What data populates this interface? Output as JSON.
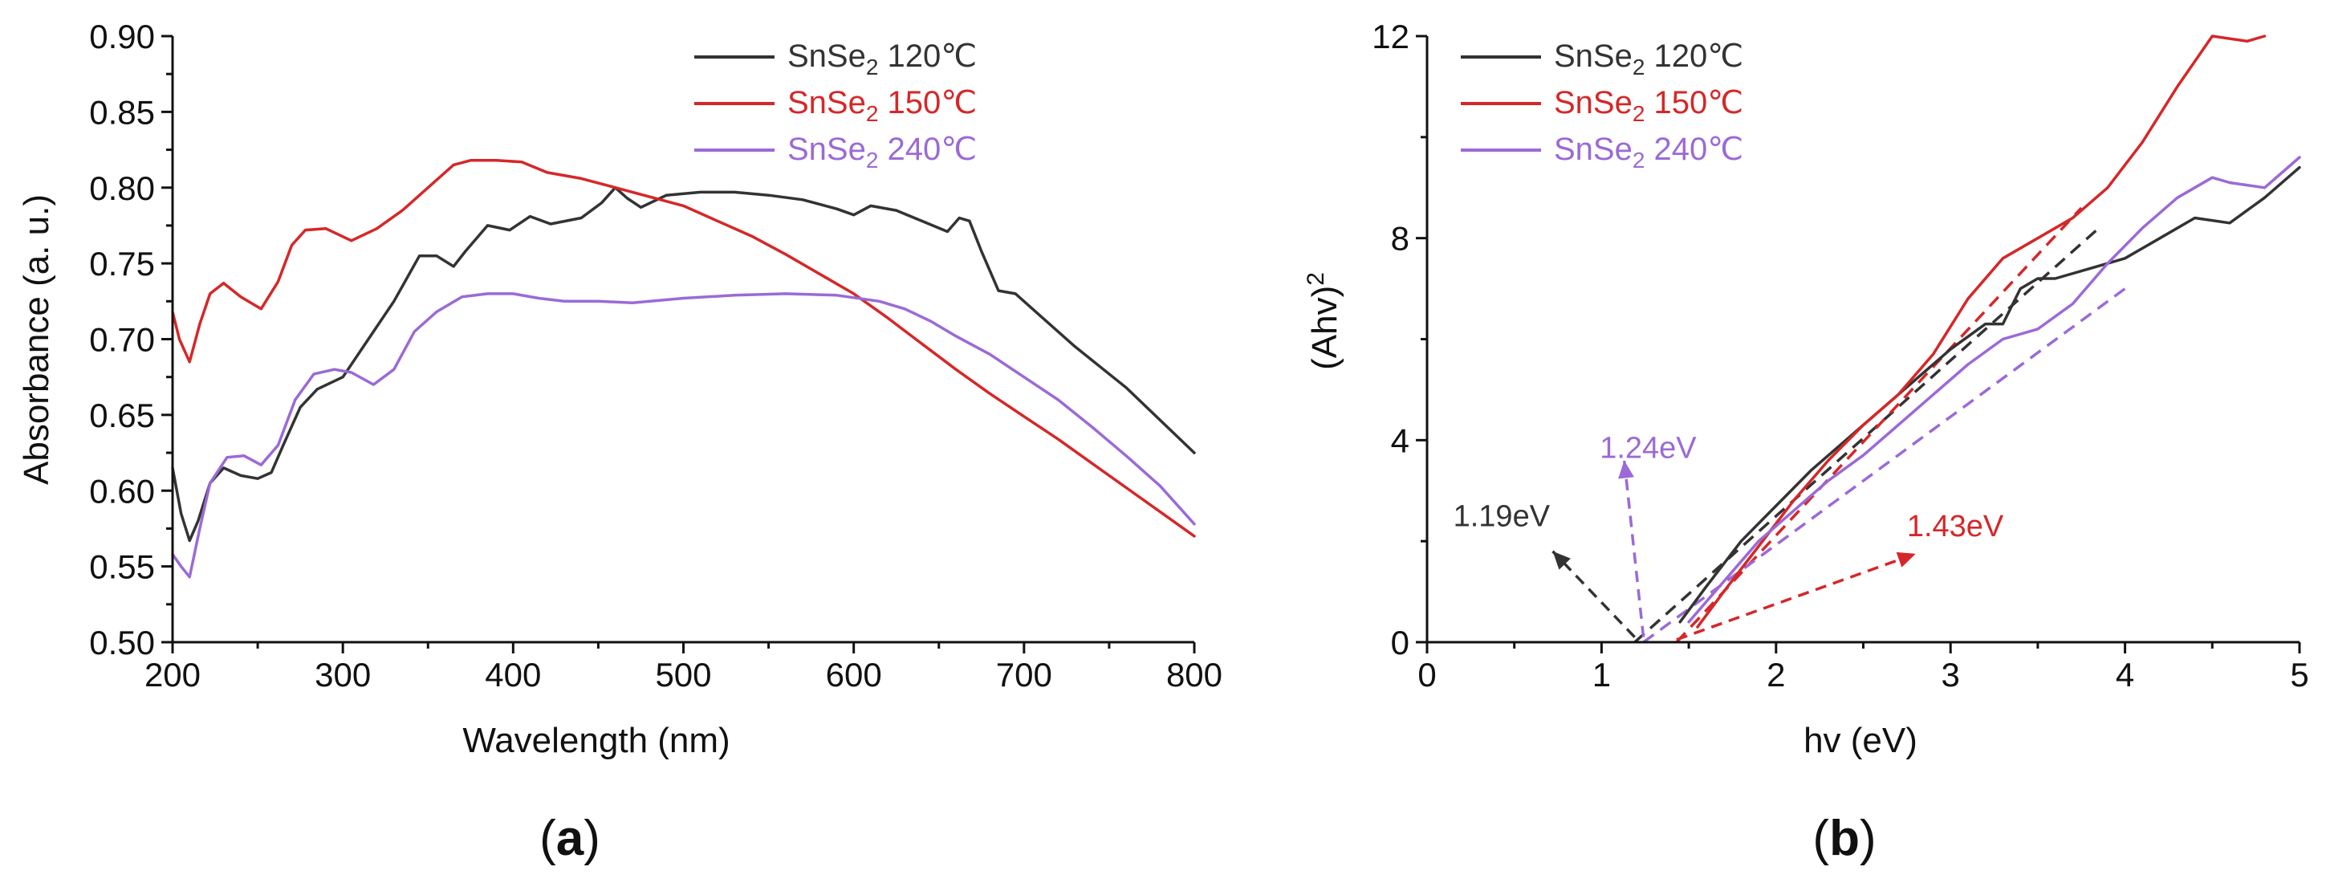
{
  "figure": {
    "panel_a_caption": {
      "open": "(",
      "letter": "a",
      "close": ")"
    },
    "panel_b_caption": {
      "open": "(",
      "letter": "b",
      "close": ")"
    }
  },
  "chart_data": [
    {
      "type": "line",
      "panel": "a",
      "title": "",
      "xlabel": "Wavelength (nm)",
      "ylabel": "Absorbance (a. u.)",
      "xlim": [
        200,
        800
      ],
      "ylim": [
        0.5,
        0.9
      ],
      "xticks": [
        200,
        300,
        400,
        500,
        600,
        700,
        800
      ],
      "xtick_labels": [
        "200",
        "300",
        "400",
        "500",
        "600",
        "700",
        "800"
      ],
      "yticks": [
        0.5,
        0.55,
        0.6,
        0.65,
        0.7,
        0.75,
        0.8,
        0.85,
        0.9
      ],
      "ytick_labels": [
        "0.50",
        "0.55",
        "0.60",
        "0.65",
        "0.70",
        "0.75",
        "0.80",
        "0.85",
        "0.90"
      ],
      "grid": false,
      "legend_position": "top-right",
      "series": [
        {
          "name": "SnSe₂ 120℃",
          "legend": {
            "base": "SnSe",
            "sub": "2",
            "temp": " 120℃"
          },
          "color": "#333333",
          "x": [
            200,
            205,
            210,
            215,
            222,
            230,
            240,
            250,
            258,
            265,
            275,
            285,
            300,
            315,
            330,
            345,
            355,
            365,
            372,
            385,
            398,
            410,
            422,
            440,
            452,
            460,
            467,
            475,
            490,
            510,
            530,
            550,
            570,
            590,
            600,
            610,
            625,
            640,
            655,
            662,
            668,
            675,
            685,
            695,
            705,
            730,
            760,
            800
          ],
          "y": [
            0.615,
            0.585,
            0.567,
            0.58,
            0.605,
            0.615,
            0.61,
            0.608,
            0.612,
            0.63,
            0.655,
            0.667,
            0.675,
            0.7,
            0.725,
            0.755,
            0.755,
            0.748,
            0.758,
            0.775,
            0.772,
            0.781,
            0.776,
            0.78,
            0.79,
            0.8,
            0.793,
            0.787,
            0.795,
            0.797,
            0.797,
            0.795,
            0.792,
            0.786,
            0.782,
            0.788,
            0.785,
            0.778,
            0.771,
            0.78,
            0.778,
            0.758,
            0.732,
            0.73,
            0.72,
            0.695,
            0.668,
            0.625
          ]
        },
        {
          "name": "SnSe₂ 150℃",
          "legend": {
            "base": "SnSe",
            "sub": "2",
            "temp": " 150℃"
          },
          "color": "#d62728",
          "x": [
            200,
            204,
            210,
            216,
            222,
            230,
            240,
            252,
            262,
            270,
            278,
            290,
            305,
            320,
            335,
            350,
            365,
            375,
            390,
            405,
            420,
            440,
            460,
            480,
            500,
            520,
            540,
            560,
            580,
            600,
            620,
            640,
            660,
            680,
            700,
            720,
            740,
            760,
            780,
            800
          ],
          "y": [
            0.718,
            0.7,
            0.685,
            0.71,
            0.73,
            0.737,
            0.728,
            0.72,
            0.738,
            0.762,
            0.772,
            0.773,
            0.765,
            0.773,
            0.785,
            0.8,
            0.815,
            0.818,
            0.818,
            0.817,
            0.81,
            0.806,
            0.8,
            0.794,
            0.788,
            0.778,
            0.768,
            0.756,
            0.743,
            0.73,
            0.714,
            0.697,
            0.68,
            0.664,
            0.649,
            0.634,
            0.618,
            0.602,
            0.586,
            0.57
          ]
        },
        {
          "name": "SnSe₂ 240℃",
          "legend": {
            "base": "SnSe",
            "sub": "2",
            "temp": " 240℃"
          },
          "color": "#9b6ad6",
          "x": [
            200,
            205,
            210,
            216,
            222,
            232,
            242,
            252,
            262,
            272,
            283,
            295,
            305,
            318,
            330,
            342,
            355,
            370,
            385,
            400,
            415,
            430,
            450,
            470,
            500,
            530,
            560,
            590,
            615,
            630,
            645,
            660,
            680,
            700,
            720,
            740,
            760,
            780,
            800
          ],
          "y": [
            0.558,
            0.55,
            0.543,
            0.575,
            0.605,
            0.622,
            0.623,
            0.617,
            0.63,
            0.66,
            0.677,
            0.68,
            0.678,
            0.67,
            0.68,
            0.705,
            0.718,
            0.728,
            0.73,
            0.73,
            0.727,
            0.725,
            0.725,
            0.724,
            0.727,
            0.729,
            0.73,
            0.729,
            0.725,
            0.72,
            0.712,
            0.702,
            0.69,
            0.675,
            0.66,
            0.642,
            0.623,
            0.603,
            0.578
          ]
        }
      ]
    },
    {
      "type": "line",
      "panel": "b",
      "title": "",
      "xlabel": "hv (eV)",
      "ylabel": {
        "base": "(Ahv)",
        "sup": "2"
      },
      "xlim": [
        0,
        5
      ],
      "ylim": [
        0,
        12
      ],
      "xticks": [
        0,
        1,
        2,
        3,
        4,
        5
      ],
      "xtick_labels": [
        "0",
        "1",
        "2",
        "3",
        "4",
        "5"
      ],
      "yticks": [
        0,
        4,
        8,
        12
      ],
      "ytick_labels": [
        "0",
        "4",
        "8",
        "12"
      ],
      "grid": false,
      "legend_position": "top-left",
      "series": [
        {
          "name": "SnSe₂ 120℃",
          "legend": {
            "base": "SnSe",
            "sub": "2",
            "temp": " 120℃"
          },
          "color": "#333333",
          "x": [
            1.45,
            1.6,
            1.8,
            2.0,
            2.2,
            2.4,
            2.6,
            2.8,
            3.0,
            3.2,
            3.3,
            3.4,
            3.5,
            3.6,
            3.8,
            4.0,
            4.2,
            4.4,
            4.6,
            4.8,
            5.0
          ],
          "y": [
            0.4,
            1.1,
            2.0,
            2.7,
            3.4,
            4.0,
            4.6,
            5.2,
            5.8,
            6.3,
            6.3,
            7.0,
            7.2,
            7.2,
            7.4,
            7.6,
            8.0,
            8.4,
            8.3,
            8.8,
            9.4
          ]
        },
        {
          "name": "SnSe₂ 150℃",
          "legend": {
            "base": "SnSe",
            "sub": "2",
            "temp": " 150℃"
          },
          "color": "#d62728",
          "x": [
            1.55,
            1.7,
            1.9,
            2.1,
            2.3,
            2.5,
            2.7,
            2.9,
            3.1,
            3.3,
            3.5,
            3.7,
            3.9,
            4.1,
            4.3,
            4.5,
            4.7,
            4.8
          ],
          "y": [
            0.3,
            1.0,
            1.9,
            2.8,
            3.6,
            4.3,
            4.9,
            5.7,
            6.8,
            7.6,
            8.0,
            8.4,
            9.0,
            9.9,
            11.0,
            12.0,
            11.9,
            12.0
          ]
        },
        {
          "name": "SnSe₂ 240℃",
          "legend": {
            "base": "SnSe",
            "sub": "2",
            "temp": " 240℃"
          },
          "color": "#9b6ad6",
          "x": [
            1.5,
            1.7,
            1.9,
            2.1,
            2.3,
            2.5,
            2.7,
            2.9,
            3.1,
            3.3,
            3.5,
            3.7,
            3.9,
            4.1,
            4.3,
            4.5,
            4.6,
            4.8,
            5.0
          ],
          "y": [
            0.4,
            1.2,
            2.0,
            2.6,
            3.2,
            3.7,
            4.3,
            4.9,
            5.5,
            6.0,
            6.2,
            6.7,
            7.5,
            8.2,
            8.8,
            9.2,
            9.1,
            9.0,
            9.6
          ]
        }
      ],
      "fit_lines": [
        {
          "name": "120℃ linear fit",
          "color": "#333333",
          "x": [
            1.19,
            3.85
          ],
          "y": [
            0,
            8.2
          ]
        },
        {
          "name": "150℃ linear fit",
          "color": "#d62728",
          "x": [
            1.43,
            3.75
          ],
          "y": [
            0,
            8.6
          ]
        },
        {
          "name": "240℃ linear fit",
          "color": "#9b6ad6",
          "x": [
            1.24,
            4.0
          ],
          "y": [
            0,
            7.0
          ]
        }
      ],
      "annotations": [
        {
          "text": "1.19eV",
          "color": "#333333",
          "arrow_from": [
            1.19,
            0.1
          ],
          "arrow_to": [
            0.72,
            1.8
          ],
          "label_at": [
            0.15,
            2.3
          ]
        },
        {
          "text": "1.24eV",
          "color": "#9b6ad6",
          "arrow_from": [
            1.24,
            0.1
          ],
          "arrow_to": [
            1.13,
            3.6
          ],
          "label_at": [
            0.99,
            3.65
          ]
        },
        {
          "text": "1.43eV",
          "color": "#d62728",
          "arrow_from": [
            1.43,
            0.05
          ],
          "arrow_to": [
            2.8,
            1.75
          ],
          "label_at": [
            2.75,
            2.1
          ]
        }
      ]
    }
  ]
}
